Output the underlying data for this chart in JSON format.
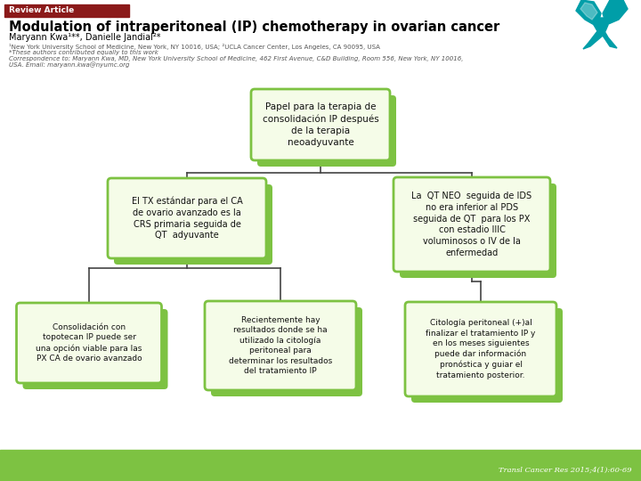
{
  "bg_color": "#ffffff",
  "footer_color": "#7dc242",
  "footer_text": "Transl Cancer Res 2015;4(1):60-69",
  "header_bar_color": "#8b1a1a",
  "header_bar_text": "Review Article",
  "title": "Modulation of intraperitoneal (IP) chemotherapy in ovarian cancer",
  "authors": "Maryann Kwa¹**, Danielle Jandial²*",
  "affil1": "¹New York University School of Medicine, New York, NY 10016, USA; ²UCLA Cancer Center, Los Angeles, CA 90095, USA",
  "affil2": "*These authors contributed equally to this work",
  "affil3": "Correspondence to: Maryann Kwa, MD, New York University School of Medicine, 462 First Avenue, C&D Building, Room 556, New York, NY 10016,",
  "affil4": "USA. Email: maryann.kwa@nyumc.org",
  "box_light": "#f5fce8",
  "box_border": "#7dc242",
  "box_tab": "#7dc242",
  "connector_color": "#444444",
  "root_text": "Papel para la terapia de\nconsolidación IP después\nde la terapia\nneoadyuvante",
  "left_mid_text": "El TX estándar para el CA\nde ovario avanzado es la\nCRS primaria seguida de\nQT  adyuvante",
  "right_mid_text": "La  QT NEO  seguida de IDS\nno era inferior al PDS\nseguida de QT  para los PX\ncon estadio IIIC\nvoluminosos o IV de la\nenfermedad",
  "bot_left_text": "Consolidación con\ntopotecan IP puede ser\nuna opción viable para las\nPX CA de ovario avanzado",
  "bot_mid_text": "Recientemente hay\nresultados donde se ha\nutilizado la citología\nperitoneal para\ndeterminar los resultados\ndel tratamiento IP",
  "bot_right_text": "Citología peritoneal (+)al\nfinalizar el tratamiento IP y\nen los meses siguientes\npuede dar información\npronóstica y guiar el\ntratamiento posterior.",
  "teal_color": "#009ea8"
}
